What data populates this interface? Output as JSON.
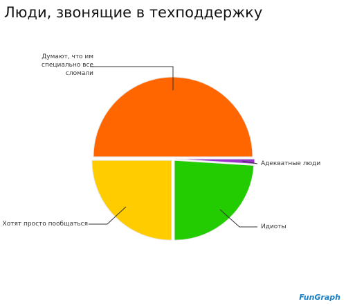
{
  "chart_data": {
    "type": "pie",
    "title": "Люди, звонящие в техподдержку",
    "categories": [
      "Думают, что им специально все сломали",
      "Адекватные люди",
      "Идиоты",
      "Хотят просто пообщаться"
    ],
    "values": [
      50,
      1,
      24,
      25
    ],
    "colors": [
      "#ff6600",
      "#9933cc",
      "#22cc00",
      "#ffcc00"
    ],
    "logo": "FunGraph"
  }
}
